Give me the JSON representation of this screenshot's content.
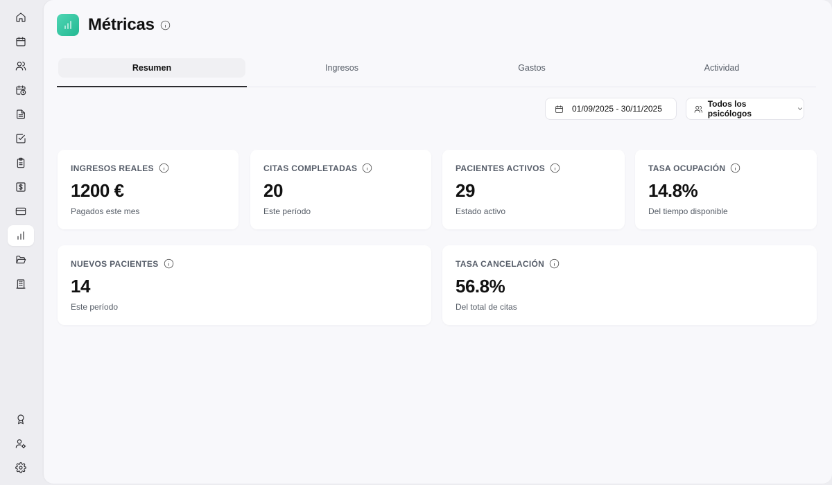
{
  "app": {
    "accent": "#2ec4a0"
  },
  "sidebar": {
    "items": [
      {
        "icon": "home-icon"
      },
      {
        "icon": "calendar-icon"
      },
      {
        "icon": "users-icon"
      },
      {
        "icon": "calendar-clock-icon"
      },
      {
        "icon": "document-icon"
      },
      {
        "icon": "checkbox-icon"
      },
      {
        "icon": "clipboard-icon"
      },
      {
        "icon": "dollar-icon"
      },
      {
        "icon": "credit-card-icon"
      },
      {
        "icon": "bar-chart-icon",
        "active": true
      },
      {
        "icon": "folder-open-icon"
      },
      {
        "icon": "building-icon"
      }
    ],
    "bottom_items": [
      {
        "icon": "award-icon"
      },
      {
        "icon": "user-settings-icon"
      },
      {
        "icon": "gear-icon"
      }
    ]
  },
  "header": {
    "title": "Métricas"
  },
  "tabs": [
    {
      "label": "Resumen",
      "active": true
    },
    {
      "label": "Ingresos"
    },
    {
      "label": "Gastos"
    },
    {
      "label": "Actividad"
    }
  ],
  "filters": {
    "date_range": "01/09/2025 - 30/11/2025",
    "psychologist": "Todos los psicólogos"
  },
  "metrics": [
    {
      "label": "INGRESOS REALES",
      "value": "1200 €",
      "sub": "Pagados este mes"
    },
    {
      "label": "CITAS COMPLETADAS",
      "value": "20",
      "sub": "Este período"
    },
    {
      "label": "PACIENTES ACTIVOS",
      "value": "29",
      "sub": "Estado activo"
    },
    {
      "label": "TASA OCUPACIÓN",
      "value": "14.8%",
      "sub": "Del tiempo disponible"
    },
    {
      "label": "NUEVOS PACIENTES",
      "value": "14",
      "sub": "Este período"
    },
    {
      "label": "TASA CANCELACIÓN",
      "value": "56.8%",
      "sub": "Del total de citas"
    }
  ]
}
